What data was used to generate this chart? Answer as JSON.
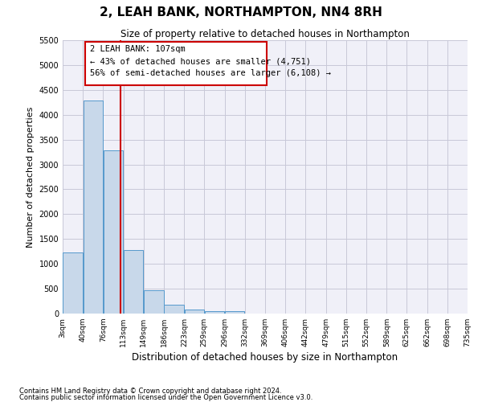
{
  "title": "2, LEAH BANK, NORTHAMPTON, NN4 8RH",
  "subtitle": "Size of property relative to detached houses in Northampton",
  "xlabel": "Distribution of detached houses by size in Northampton",
  "ylabel": "Number of detached properties",
  "footnote1": "Contains HM Land Registry data © Crown copyright and database right 2024.",
  "footnote2": "Contains public sector information licensed under the Open Government Licence v3.0.",
  "annotation_line1": "2 LEAH BANK: 107sqm",
  "annotation_line2": "← 43% of detached houses are smaller (4,751)",
  "annotation_line3": "56% of semi-detached houses are larger (6,108) →",
  "red_line_x": 107,
  "bar_color": "#c8d8ea",
  "bar_edge_color": "#5599cc",
  "red_line_color": "#cc0000",
  "grid_color": "#c8c8d8",
  "background_color": "#f0f0f8",
  "bin_edges": [
    3,
    40,
    76,
    113,
    149,
    186,
    223,
    259,
    296,
    332,
    369,
    406,
    442,
    479,
    515,
    552,
    589,
    625,
    662,
    698,
    735
  ],
  "bin_counts": [
    1230,
    4280,
    3280,
    1280,
    470,
    185,
    80,
    55,
    50,
    0,
    0,
    0,
    0,
    0,
    0,
    0,
    0,
    0,
    0,
    0
  ],
  "ylim": [
    0,
    5500
  ],
  "yticks": [
    0,
    500,
    1000,
    1500,
    2000,
    2500,
    3000,
    3500,
    4000,
    4500,
    5000,
    5500
  ]
}
